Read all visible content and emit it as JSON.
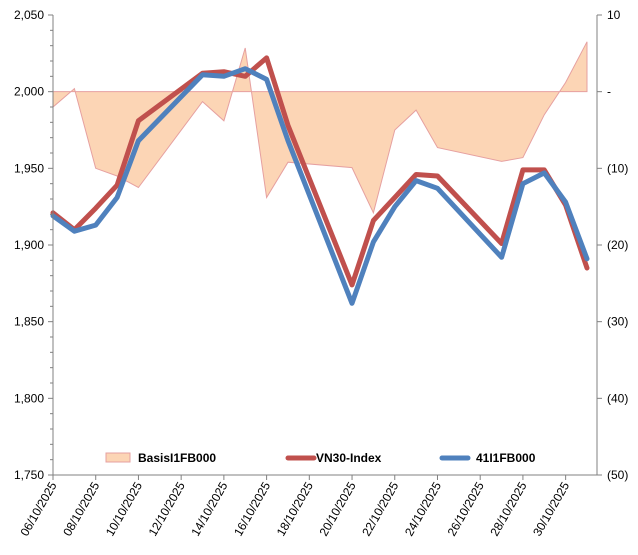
{
  "chart_data": {
    "type": "line",
    "title": "",
    "xlabel": "",
    "ylabel": "",
    "y2label": "",
    "grid": false,
    "legend_position": "bottom-inside",
    "x_tick_labels": [
      "06/10/2025",
      "08/10/2025",
      "10/10/2025",
      "12/10/2025",
      "14/10/2025",
      "16/10/2025",
      "18/10/2025",
      "20/10/2025",
      "22/10/2025",
      "24/10/2025",
      "26/10/2025",
      "28/10/2025",
      "30/10/2025"
    ],
    "x_range_days": [
      6,
      31
    ],
    "y_left": {
      "range": [
        1750,
        2050
      ],
      "ticks": [
        1750,
        1800,
        1850,
        1900,
        1950,
        2000,
        2050
      ],
      "tick_labels": [
        "1,750",
        "1,800",
        "1,850",
        "1,900",
        "1,950",
        "2,000",
        "2,050"
      ]
    },
    "y_right": {
      "range": [
        -50,
        10
      ],
      "ticks": [
        -50,
        -40,
        -30,
        -20,
        -10,
        0,
        10
      ],
      "tick_labels": [
        "(50)",
        "(40)",
        "(30)",
        "(20)",
        "(10)",
        "-",
        "10"
      ]
    },
    "x_days": [
      6,
      7,
      8,
      9,
      10,
      13,
      14,
      15,
      16,
      17,
      20,
      21,
      22,
      23,
      24,
      27,
      28,
      29,
      30,
      31
    ],
    "series": [
      {
        "name": "BasisI1FB000",
        "axis": "right",
        "kind": "area",
        "color": "#FCD5B5",
        "edge": "#E6A0A0",
        "values": [
          -2,
          0.4,
          -10,
          -11,
          -12.5,
          -1.3,
          -3.8,
          5.7,
          -13.8,
          -9.2,
          -9.9,
          -15.8,
          -5,
          -2.4,
          -7.3,
          -9.1,
          -8.6,
          -3,
          1.2,
          6.5
        ]
      },
      {
        "name": "VN30-Index",
        "axis": "left",
        "kind": "line",
        "color": "#C0504D",
        "values": [
          1921,
          1910,
          1924,
          1939,
          1981,
          2012,
          2013,
          2010,
          2022,
          1978,
          1874,
          1916,
          1931,
          1946,
          1945,
          1901,
          1949,
          1949,
          1926,
          1885
        ]
      },
      {
        "name": "41I1FB000",
        "axis": "left",
        "kind": "line",
        "color": "#4F81BD",
        "values": [
          1919,
          1909,
          1913,
          1931,
          1968,
          2011,
          2010,
          2015,
          2008,
          1968,
          1862,
          1902,
          1925,
          1942,
          1937,
          1892,
          1940,
          1947,
          1928,
          1891
        ]
      }
    ]
  }
}
